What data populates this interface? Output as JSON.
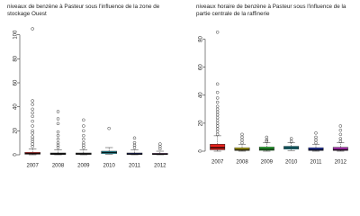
{
  "chart_data": [
    {
      "type": "boxplot",
      "title": "niveaux de benzène à Pasteur sous l'influence de la zone de stockage Ouest",
      "categories": [
        "2007",
        "2008",
        "2009",
        "2010",
        "2011",
        "2012"
      ],
      "boxes": [
        {
          "min": 0,
          "q1": 0.5,
          "median": 1,
          "q3": 2,
          "max": 5,
          "color": "#e8211c",
          "outliers": [
            7,
            9,
            11,
            13,
            15,
            18,
            20,
            24,
            28,
            32,
            35,
            38,
            42,
            45,
            105
          ]
        },
        {
          "min": 0,
          "q1": 0.3,
          "median": 0.7,
          "q3": 1.5,
          "max": 4,
          "color": "#222222",
          "outliers": [
            6,
            8,
            10,
            13,
            16,
            19,
            26,
            30,
            36
          ]
        },
        {
          "min": 0,
          "q1": 0.3,
          "median": 0.8,
          "q3": 1.5,
          "max": 4,
          "color": "#555555",
          "outliers": [
            6,
            8,
            10,
            13,
            16,
            20,
            24,
            29
          ]
        },
        {
          "min": 0.5,
          "q1": 1,
          "median": 2,
          "q3": 3,
          "max": 6,
          "color": "#29c4d8",
          "outliers": [
            22
          ]
        },
        {
          "min": 0,
          "q1": 0.3,
          "median": 0.7,
          "q3": 1.5,
          "max": 4,
          "color": "#2a3fd0",
          "outliers": [
            6,
            8,
            10,
            14
          ]
        },
        {
          "min": 0,
          "q1": 0.3,
          "median": 0.6,
          "q3": 1.2,
          "max": 3,
          "color": "#c233c9",
          "outliers": [
            5,
            7,
            9
          ]
        }
      ],
      "ylim": [
        0,
        108
      ],
      "yticks": [
        0,
        20,
        40,
        60,
        80,
        100
      ]
    },
    {
      "type": "boxplot",
      "title": "niveaux horaire de benzène à Pasteur sous l'influence de la partie centrale de la raffinerie",
      "categories": [
        "2007",
        "2008",
        "2009",
        "2010",
        "2011",
        "2012"
      ],
      "boxes": [
        {
          "min": 0,
          "q1": 1,
          "median": 2.5,
          "q3": 5,
          "max": 11,
          "color": "#e8211c",
          "outliers": [
            12,
            14,
            16,
            18,
            20,
            22,
            24,
            26,
            28,
            30,
            32,
            35,
            38,
            42,
            48,
            85
          ]
        },
        {
          "min": 0,
          "q1": 0.5,
          "median": 1.2,
          "q3": 2.5,
          "max": 5,
          "color": "#e0d21a",
          "outliers": [
            6,
            8,
            10,
            12
          ]
        },
        {
          "min": 0,
          "q1": 0.6,
          "median": 1.5,
          "q3": 3,
          "max": 6,
          "color": "#2fc13a",
          "outliers": [
            7,
            8,
            10
          ]
        },
        {
          "min": 0.5,
          "q1": 1.5,
          "median": 2.5,
          "q3": 3.5,
          "max": 6,
          "color": "#29c4d8",
          "outliers": [
            7,
            9
          ]
        },
        {
          "min": 0,
          "q1": 0.5,
          "median": 1.2,
          "q3": 2.5,
          "max": 5,
          "color": "#2a3fd0",
          "outliers": [
            6,
            8,
            10,
            13
          ]
        },
        {
          "min": 0,
          "q1": 0.5,
          "median": 1.2,
          "q3": 2.8,
          "max": 6,
          "color": "#c233c9",
          "outliers": [
            7,
            9,
            12,
            15,
            18
          ]
        }
      ],
      "ylim": [
        0,
        90
      ],
      "yticks": [
        0,
        20,
        40,
        60,
        80
      ]
    }
  ]
}
